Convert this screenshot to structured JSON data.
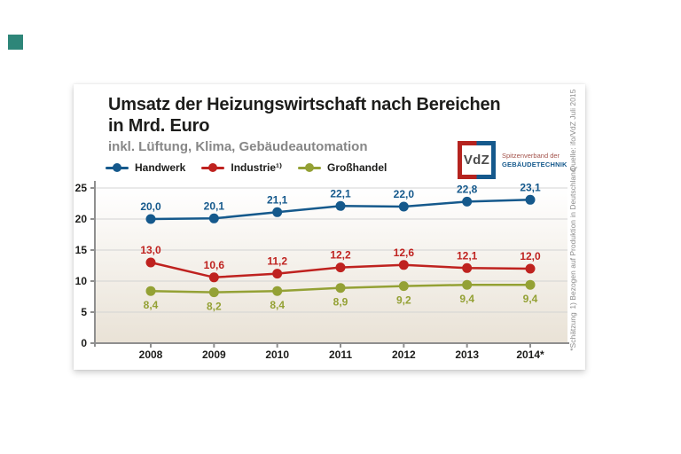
{
  "decor": {
    "corner_square_color": "#2e8679"
  },
  "card": {
    "title_line1": "Umsatz der Heizungswirtschaft nach Bereichen",
    "title_line2": "in Mrd. Euro",
    "subtitle": "inkl. Lüftung, Klima, Gebäudeautomation",
    "logo": {
      "text": "VdZ",
      "tagline_line1": "Spitzenverband der",
      "tagline_line2": "GEBÄUDETECHNIK",
      "red": "#b5231f",
      "blue": "#15598c"
    },
    "side_notes": [
      "Quelle: ifo/VdZ Juli 2015",
      "1) Bezogen auf Produktion in Deutschland",
      "*Schätzung"
    ]
  },
  "chart_data": {
    "type": "line",
    "title": "Umsatz der Heizungswirtschaft nach Bereichen in Mrd. Euro",
    "subtitle": "inkl. Lüftung, Klima, Gebäudeautomation",
    "categories": [
      "2008",
      "2009",
      "2010",
      "2011",
      "2012",
      "2013",
      "2014*"
    ],
    "series": [
      {
        "name": "Handwerk",
        "color": "#15598c",
        "values": [
          20.0,
          20.1,
          21.1,
          22.1,
          22.0,
          22.8,
          23.1
        ],
        "labels": [
          "20,0",
          "20,1",
          "21,1",
          "22,1",
          "22,0",
          "22,8",
          "23,1"
        ],
        "label_position": "above"
      },
      {
        "name": "Industrie¹⁾",
        "color": "#bf221f",
        "values": [
          13.0,
          10.6,
          11.2,
          12.2,
          12.6,
          12.1,
          12.0
        ],
        "labels": [
          "13,0",
          "10,6",
          "11,2",
          "12,2",
          "12,6",
          "12,1",
          "12,0"
        ],
        "label_position": "above"
      },
      {
        "name": "Großhandel",
        "color": "#94a135",
        "values": [
          8.4,
          8.2,
          8.4,
          8.9,
          9.2,
          9.4,
          9.4
        ],
        "labels": [
          "8,4",
          "8,2",
          "8,4",
          "8,9",
          "9,2",
          "9,4",
          "9,4"
        ],
        "label_position": "below"
      }
    ],
    "ylim": [
      0,
      25
    ],
    "yticks": [
      0,
      5,
      10,
      15,
      20,
      25
    ],
    "grid": true,
    "legend_position": "top",
    "axis_color": "#8f8f8f",
    "grid_color": "#d3d3d3",
    "tick_label_color": "#1d1d1b",
    "plot_bg_top": "#ffffff",
    "plot_bg_bottom": "#e9e2d6"
  }
}
